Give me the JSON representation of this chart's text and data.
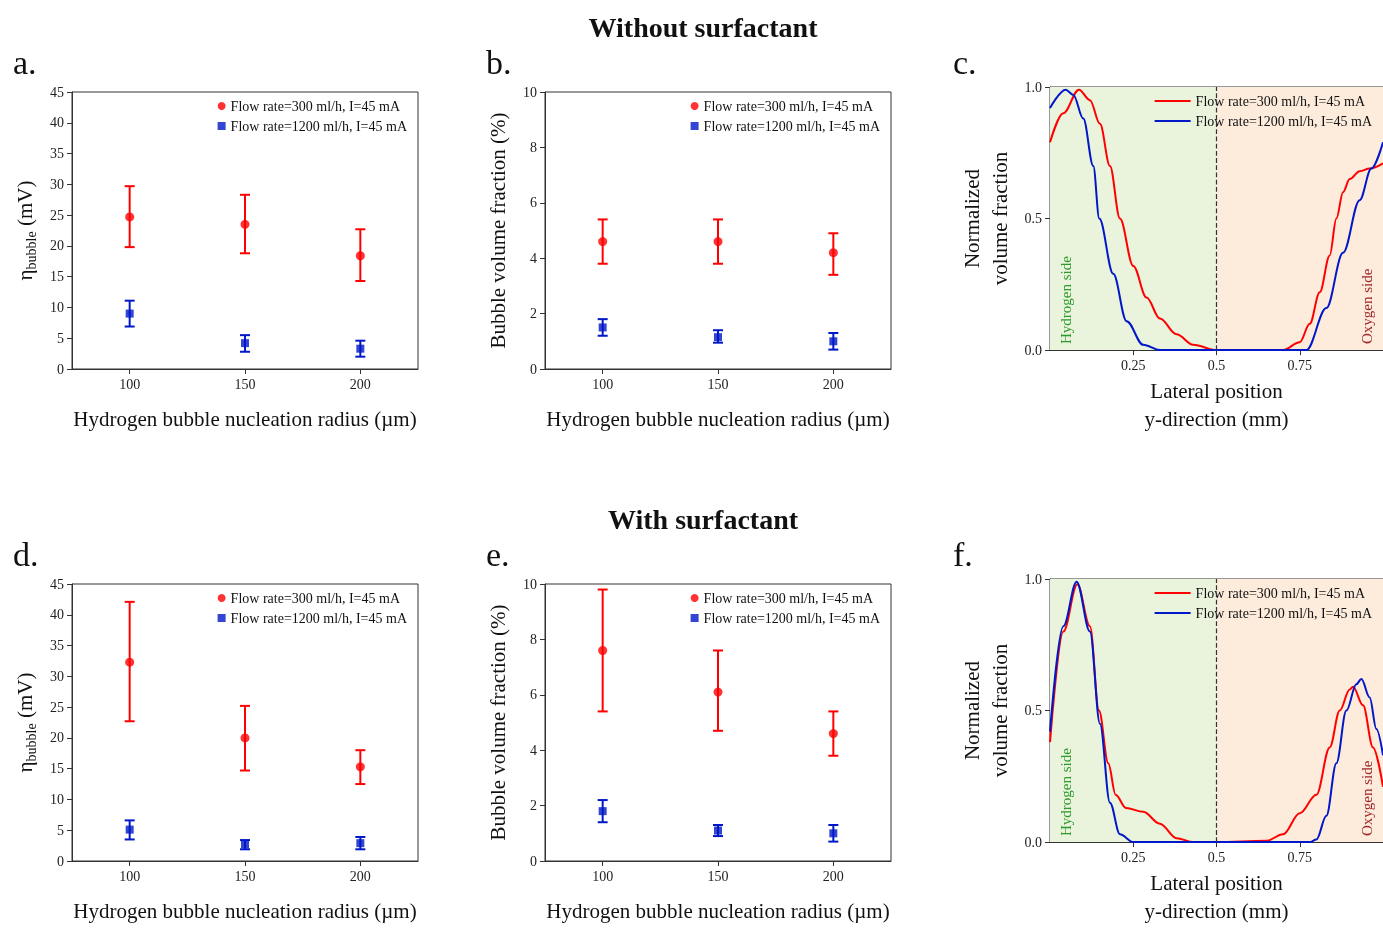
{
  "chart_data": [
    {
      "type": "scatter",
      "title": "a.",
      "xlabel": "Hydrogen bubble nucleation radius (µm)",
      "ylabel": "η$_{bubble}$ (mV)",
      "x": [
        100,
        150,
        200
      ],
      "xlim": [
        75,
        225
      ],
      "xticks": [
        100,
        150,
        200
      ],
      "ylim": [
        0,
        45
      ],
      "yticks": [
        0,
        5,
        10,
        15,
        20,
        25,
        30,
        35,
        40,
        45
      ],
      "legend": "top right",
      "series": [
        {
          "name": "Flow rate=300 ml/h, I=45 mA",
          "color": "#ff0000",
          "marker": "circle",
          "values": [
            24.7,
            23.5,
            18.4
          ],
          "errors": [
            [
              19.8,
              29.7
            ],
            [
              18.8,
              28.3
            ],
            [
              14.3,
              22.7
            ]
          ]
        },
        {
          "name": "Flow rate=1200 ml/h, I=45 mA",
          "color": "#0018c8",
          "marker": "square",
          "values": [
            9.0,
            4.2,
            3.3
          ],
          "errors": [
            [
              6.9,
              11.1
            ],
            [
              2.8,
              5.5
            ],
            [
              2.0,
              4.6
            ]
          ]
        }
      ]
    },
    {
      "type": "scatter",
      "title": "b.",
      "subtitle": "Without surfactant",
      "xlabel": "Hydrogen bubble nucleation radius (µm)",
      "ylabel": "Bubble volume fraction (%)",
      "x": [
        100,
        150,
        200
      ],
      "xlim": [
        75,
        225
      ],
      "xticks": [
        100,
        150,
        200
      ],
      "ylim": [
        0,
        10
      ],
      "yticks": [
        0,
        2,
        4,
        6,
        8,
        10
      ],
      "legend": "top right",
      "series": [
        {
          "name": "Flow rate=300 ml/h, I=45 mA",
          "color": "#ff0000",
          "marker": "circle",
          "values": [
            4.6,
            4.6,
            4.2
          ],
          "errors": [
            [
              3.8,
              5.4
            ],
            [
              3.8,
              5.4
            ],
            [
              3.4,
              4.9
            ]
          ]
        },
        {
          "name": "Flow rate=1200 ml/h, I=45 mA",
          "color": "#0018c8",
          "marker": "square",
          "values": [
            1.5,
            1.15,
            1.0
          ],
          "errors": [
            [
              1.2,
              1.8
            ],
            [
              0.95,
              1.4
            ],
            [
              0.7,
              1.3
            ]
          ]
        }
      ]
    },
    {
      "type": "line",
      "title": "c.",
      "xlabel": "Lateral position\ny-direction (mm)",
      "ylabel": "Normalized\nvolume fraction",
      "xlim": [
        0,
        1
      ],
      "xticks": [
        0.25,
        0.5,
        0.75
      ],
      "ylim": [
        0,
        1
      ],
      "yticks": [
        {
          "value": 0,
          "label": "0.0"
        },
        {
          "value": 0.5,
          "label": "0.5"
        },
        {
          "value": 1,
          "label": "1.0"
        }
      ],
      "legend": "top right",
      "marker": "none",
      "ref_lines": [
        {
          "axis": "x",
          "value": 0.5,
          "line_style": "dashed",
          "color": "#333333"
        }
      ],
      "bands": [
        {
          "axis": "x",
          "from": 0,
          "to": 0.5,
          "label": "Hydrogen side",
          "color": "#eaf3dc"
        },
        {
          "axis": "x",
          "from": 0.5,
          "to": 1,
          "label": "Oxygen side",
          "color": "#fdecdc"
        }
      ],
      "series": [
        {
          "name": "Flow rate=300 ml/h, I=45 mA",
          "color": "#ff0000",
          "x": [
            0,
            0.04,
            0.087,
            0.12,
            0.15,
            0.18,
            0.21,
            0.25,
            0.29,
            0.33,
            0.38,
            0.43,
            0.5,
            0.6,
            0.7,
            0.75,
            0.78,
            0.81,
            0.84,
            0.86,
            0.88,
            0.9,
            0.93,
            0.96,
            1.0
          ],
          "values": [
            0.79,
            0.9,
            0.99,
            0.95,
            0.86,
            0.7,
            0.5,
            0.32,
            0.2,
            0.12,
            0.06,
            0.02,
            0.0,
            0.0,
            0.0,
            0.03,
            0.1,
            0.22,
            0.36,
            0.5,
            0.6,
            0.65,
            0.68,
            0.69,
            0.71
          ]
        },
        {
          "name": "Flow rate=1200 ml/h, I=45 mA",
          "color": "#0018c8",
          "x": [
            0,
            0.047,
            0.07,
            0.1,
            0.13,
            0.148,
            0.19,
            0.23,
            0.28,
            0.33,
            0.5,
            0.7,
            0.77,
            0.83,
            0.88,
            0.93,
            0.965,
            1.0
          ],
          "values": [
            0.92,
            0.99,
            0.97,
            0.88,
            0.7,
            0.5,
            0.29,
            0.11,
            0.02,
            0.0,
            0.0,
            0.0,
            0.0,
            0.16,
            0.37,
            0.57,
            0.69,
            0.79
          ]
        }
      ]
    },
    {
      "type": "scatter",
      "title": "d.",
      "xlabel": "Hydrogen bubble nucleation radius (µm)",
      "ylabel": "η$_{bubble}$ (mV)",
      "x": [
        100,
        150,
        200
      ],
      "xlim": [
        75,
        225
      ],
      "xticks": [
        100,
        150,
        200
      ],
      "ylim": [
        0,
        45
      ],
      "yticks": [
        0,
        5,
        10,
        15,
        20,
        25,
        30,
        35,
        40,
        45
      ],
      "legend": "top right",
      "series": [
        {
          "name": "Flow rate=300 ml/h, I=45 mA",
          "color": "#ff0000",
          "marker": "circle",
          "values": [
            32.3,
            20.0,
            15.3
          ],
          "errors": [
            [
              22.7,
              42.1
            ],
            [
              14.7,
              25.2
            ],
            [
              12.5,
              18.0
            ]
          ]
        },
        {
          "name": "Flow rate=1200 ml/h, I=45 mA",
          "color": "#0018c8",
          "marker": "square",
          "values": [
            5.1,
            2.7,
            2.9
          ],
          "errors": [
            [
              3.5,
              6.6
            ],
            [
              1.9,
              3.4
            ],
            [
              1.9,
              3.9
            ]
          ]
        }
      ]
    },
    {
      "type": "scatter",
      "title": "e.",
      "subtitle": "With surfactant",
      "xlabel": "Hydrogen bubble nucleation radius (µm)",
      "ylabel": "Bubble volume fraction (%)",
      "x": [
        100,
        150,
        200
      ],
      "xlim": [
        75,
        225
      ],
      "xticks": [
        100,
        150,
        200
      ],
      "ylim": [
        0,
        10
      ],
      "yticks": [
        0,
        2,
        4,
        6,
        8,
        10
      ],
      "legend": "top right",
      "series": [
        {
          "name": "Flow rate=300 ml/h, I=45 mA",
          "color": "#ff0000",
          "marker": "circle",
          "values": [
            7.6,
            6.1,
            4.6
          ],
          "errors": [
            [
              5.4,
              9.8
            ],
            [
              4.7,
              7.6
            ],
            [
              3.8,
              5.4
            ]
          ]
        },
        {
          "name": "Flow rate=1200 ml/h, I=45 mA",
          "color": "#0018c8",
          "marker": "square",
          "values": [
            1.8,
            1.1,
            1.0
          ],
          "errors": [
            [
              1.4,
              2.2
            ],
            [
              0.9,
              1.3
            ],
            [
              0.7,
              1.3
            ]
          ]
        }
      ]
    },
    {
      "type": "line",
      "title": "f.",
      "xlabel": "Lateral position\ny-direction (mm)",
      "ylabel": "Normalized\nvolume fraction",
      "xlim": [
        0,
        1
      ],
      "xticks": [
        0.25,
        0.5,
        0.75
      ],
      "ylim": [
        0,
        1
      ],
      "yticks": [
        {
          "value": 0,
          "label": "0.0"
        },
        {
          "value": 0.5,
          "label": "0.5"
        },
        {
          "value": 1,
          "label": "1.0"
        }
      ],
      "legend": "top right",
      "marker": "none",
      "ref_lines": [
        {
          "axis": "x",
          "value": 0.5,
          "line_style": "dashed",
          "color": "#333333"
        }
      ],
      "bands": [
        {
          "axis": "x",
          "from": 0,
          "to": 0.5,
          "label": "Hydrogen side",
          "color": "#eaf3dc"
        },
        {
          "axis": "x",
          "from": 0.5,
          "to": 1,
          "label": "Oxygen side",
          "color": "#fdecdc"
        }
      ],
      "series": [
        {
          "name": "Flow rate=300 ml/h, I=45 mA",
          "color": "#ff0000",
          "x": [
            0,
            0.04,
            0.082,
            0.12,
            0.147,
            0.175,
            0.197,
            0.228,
            0.28,
            0.33,
            0.38,
            0.43,
            0.5,
            0.65,
            0.7,
            0.75,
            0.8,
            0.84,
            0.87,
            0.9,
            0.91,
            0.94,
            0.97,
            1.0
          ],
          "values": [
            0.38,
            0.8,
            0.98,
            0.82,
            0.5,
            0.3,
            0.18,
            0.13,
            0.115,
            0.07,
            0.015,
            0.0,
            0.0,
            0.005,
            0.03,
            0.11,
            0.18,
            0.36,
            0.5,
            0.58,
            0.59,
            0.52,
            0.36,
            0.21
          ]
        },
        {
          "name": "Flow rate=1200 ml/h, I=45 mA",
          "color": "#0018c8",
          "x": [
            0,
            0.04,
            0.08,
            0.12,
            0.15,
            0.18,
            0.21,
            0.25,
            0.5,
            0.78,
            0.8,
            0.83,
            0.86,
            0.89,
            0.92,
            0.935,
            0.96,
            0.98,
            1.0
          ],
          "values": [
            0.42,
            0.82,
            0.99,
            0.8,
            0.45,
            0.15,
            0.03,
            0.0,
            0.0,
            0.0,
            0.01,
            0.1,
            0.3,
            0.5,
            0.6,
            0.62,
            0.55,
            0.43,
            0.33
          ]
        }
      ]
    }
  ]
}
